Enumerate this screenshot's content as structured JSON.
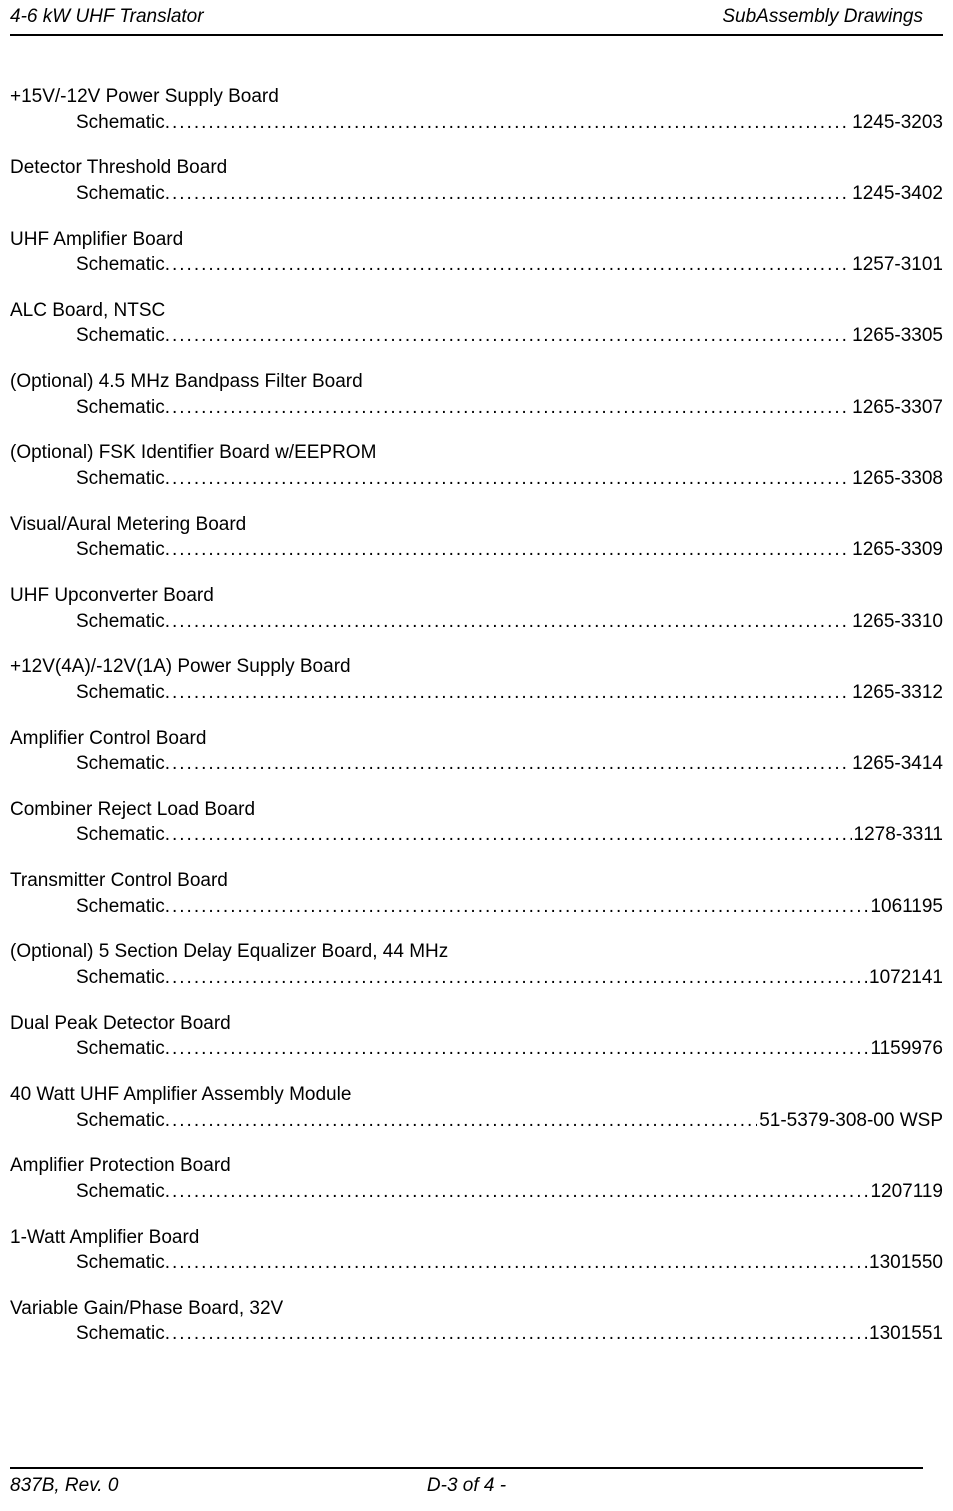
{
  "header": {
    "left": "4-6 kW UHF Translator",
    "right": "SubAssembly Drawings"
  },
  "dots": "...................................................................................................................................................................",
  "entries": [
    {
      "title": "+15V/-12V Power Supply Board",
      "label": "Schematic",
      "number": "1245-3203"
    },
    {
      "title": "Detector Threshold Board",
      "label": "Schematic",
      "number": "1245-3402"
    },
    {
      "title": "UHF Amplifier Board",
      "label": "Schematic",
      "number": "1257-3101"
    },
    {
      "title": "ALC Board, NTSC",
      "label": "Schematic",
      "number": "1265-3305"
    },
    {
      "title": "(Optional) 4.5 MHz Bandpass Filter Board",
      "label": "Schematic",
      "number": "1265-3307"
    },
    {
      "title": "(Optional) FSK Identifier Board w/EEPROM",
      "label": "Schematic",
      "number": "1265-3308"
    },
    {
      "title": "Visual/Aural Metering Board",
      "label": "Schematic",
      "number": "1265-3309"
    },
    {
      "title": "UHF Upconverter Board",
      "label": "Schematic",
      "number": "1265-3310"
    },
    {
      "title": "+12V(4A)/-12V(1A) Power Supply Board",
      "label": "Schematic",
      "number": "1265-3312"
    },
    {
      "title": "Amplifier Control Board",
      "label": "Schematic",
      "number": "1265-3414"
    },
    {
      "title": "Combiner Reject Load Board",
      "label": "Schematic",
      "number": "1278-3311"
    },
    {
      "title": "Transmitter Control Board",
      "label": "Schematic",
      "number": "1061195"
    },
    {
      "title": "(Optional) 5 Section Delay Equalizer Board, 44 MHz",
      "label": "Schematic",
      "number": "1072141"
    },
    {
      "title": "Dual Peak Detector Board",
      "label": "Schematic",
      "number": "1159976"
    },
    {
      "title": "40 Watt UHF Amplifier Assembly Module",
      "label": "Schematic",
      "number": "51-5379-308-00 WSP"
    },
    {
      "title": "Amplifier Protection Board",
      "label": "Schematic",
      "number": "1207119"
    },
    {
      "title": "1-Watt Amplifier Board",
      "label": "Schematic",
      "number": "1301550"
    },
    {
      "title": "Variable Gain/Phase Board, 32V",
      "label": "Schematic",
      "number": "1301551"
    }
  ],
  "footer": {
    "left": "837B, Rev. 0",
    "center": "D-3 of 4 -"
  }
}
